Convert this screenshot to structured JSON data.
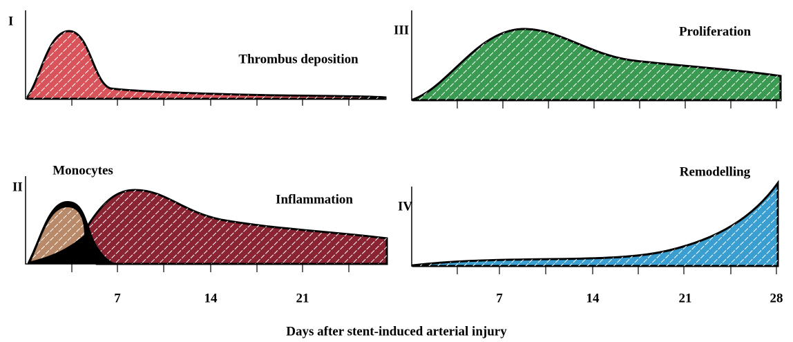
{
  "panels": [
    {
      "label": "I",
      "curves": [
        "Thrombus deposition"
      ]
    },
    {
      "label": "II",
      "curves": [
        "Monocytes",
        "Inflammation"
      ]
    },
    {
      "label": "III",
      "curves": [
        "Proliferation"
      ]
    },
    {
      "label": "IV",
      "curves": [
        "Remodelling"
      ]
    }
  ],
  "left_axis_ticks": [
    7,
    14,
    21
  ],
  "right_axis_ticks": [
    7,
    14,
    21,
    28
  ],
  "x_axis_title": "Days after stent-induced arterial injury"
}
